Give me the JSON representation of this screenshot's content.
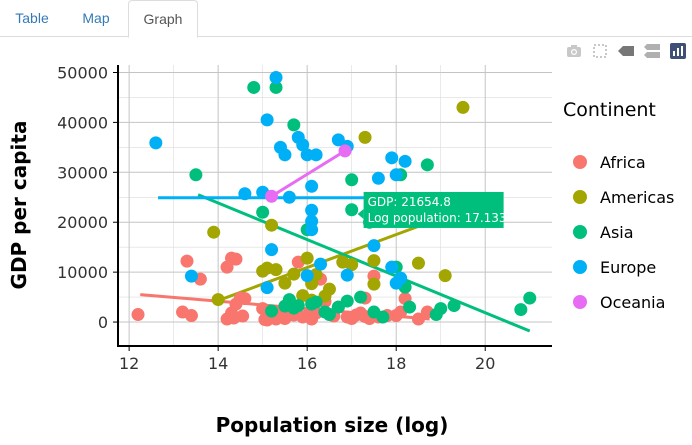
{
  "tabs": [
    {
      "label": "Table",
      "active": false
    },
    {
      "label": "Map",
      "active": false
    },
    {
      "label": "Graph",
      "active": true
    }
  ],
  "modebar": {
    "icons": [
      "camera-icon",
      "box-select-icon",
      "hover-closest-icon",
      "compare-hover-icon",
      "plotly-logo-icon"
    ]
  },
  "chart_data": {
    "type": "scatter",
    "title": "",
    "xlabel": "Population size (log)",
    "ylabel": "GDP per capita",
    "xlim": [
      11.75,
      21.5
    ],
    "ylim": [
      -4800,
      51500
    ],
    "xticks": [
      12,
      14,
      16,
      18,
      20
    ],
    "yticks": [
      0,
      10000,
      20000,
      30000,
      40000,
      50000
    ],
    "grid": true,
    "legend": {
      "title": "Continent",
      "position": "right"
    },
    "series": [
      {
        "name": "Africa",
        "color": "#F8766D",
        "points": [
          [
            12.2,
            1500
          ],
          [
            13.2,
            2000
          ],
          [
            13.4,
            1300
          ],
          [
            13.3,
            12200
          ],
          [
            13.6,
            8600
          ],
          [
            14.2,
            11000
          ],
          [
            14.3,
            12800
          ],
          [
            14.4,
            12600
          ],
          [
            14.3,
            1800
          ],
          [
            14.4,
            3600
          ],
          [
            14.5,
            4800
          ],
          [
            14.6,
            4700
          ],
          [
            14.2,
            600
          ],
          [
            14.35,
            800
          ],
          [
            14.55,
            1200
          ],
          [
            15.0,
            2700
          ],
          [
            15.05,
            500
          ],
          [
            15.1,
            400
          ],
          [
            15.3,
            600
          ],
          [
            15.4,
            2000
          ],
          [
            15.5,
            700
          ],
          [
            15.6,
            2800
          ],
          [
            15.7,
            1400
          ],
          [
            15.8,
            12000
          ],
          [
            15.9,
            1000
          ],
          [
            16.0,
            1300
          ],
          [
            16.2,
            1800
          ],
          [
            16.3,
            8600
          ],
          [
            16.4,
            4100
          ],
          [
            16.5,
            1500
          ],
          [
            16.6,
            1200
          ],
          [
            16.7,
            3000
          ],
          [
            16.9,
            1000
          ],
          [
            17.0,
            700
          ],
          [
            17.1,
            1400
          ],
          [
            17.2,
            1800
          ],
          [
            17.3,
            4800
          ],
          [
            17.4,
            700
          ],
          [
            17.5,
            9200
          ],
          [
            17.6,
            1000
          ],
          [
            17.3,
            1100
          ],
          [
            18.0,
            1300
          ],
          [
            18.1,
            2000
          ],
          [
            18.2,
            4700
          ],
          [
            18.5,
            600
          ],
          [
            18.7,
            2000
          ],
          [
            17.8,
            1300
          ],
          [
            16.1,
            600
          ]
        ],
        "trend": [
          [
            12.25,
            5500
          ],
          [
            18.75,
            600
          ]
        ]
      },
      {
        "name": "Americas",
        "color": "#A3A500",
        "points": [
          [
            13.9,
            18000
          ],
          [
            14.0,
            4500
          ],
          [
            15.0,
            10200
          ],
          [
            15.1,
            10800
          ],
          [
            15.2,
            19400
          ],
          [
            15.5,
            7800
          ],
          [
            15.7,
            9600
          ],
          [
            15.9,
            5300
          ],
          [
            16.0,
            12800
          ],
          [
            16.1,
            7700
          ],
          [
            16.2,
            9500
          ],
          [
            16.4,
            5200
          ],
          [
            16.5,
            6600
          ],
          [
            16.8,
            12000
          ],
          [
            17.0,
            11500
          ],
          [
            17.3,
            37000
          ],
          [
            17.5,
            7600
          ],
          [
            18.5,
            11800
          ],
          [
            19.1,
            9300
          ],
          [
            19.5,
            43000
          ],
          [
            15.3,
            10500
          ],
          [
            16.1,
            4400
          ],
          [
            17.5,
            12300
          ]
        ],
        "trend": [
          [
            14.0,
            4300
          ],
          [
            19.2,
            21500
          ]
        ]
      },
      {
        "name": "Asia",
        "color": "#00BF7D",
        "points": [
          [
            13.5,
            29500
          ],
          [
            14.8,
            47000
          ],
          [
            15.0,
            22000
          ],
          [
            15.2,
            2200
          ],
          [
            15.3,
            47000
          ],
          [
            15.5,
            3200
          ],
          [
            15.6,
            4500
          ],
          [
            15.7,
            39500
          ],
          [
            15.8,
            3300
          ],
          [
            16.0,
            18500
          ],
          [
            16.2,
            4000
          ],
          [
            16.4,
            2000
          ],
          [
            16.7,
            3000
          ],
          [
            16.9,
            4200
          ],
          [
            17.0,
            28500
          ],
          [
            17.2,
            5000
          ],
          [
            17.4,
            20000
          ],
          [
            17.5,
            2000
          ],
          [
            17.7,
            1000
          ],
          [
            18.0,
            11000
          ],
          [
            18.1,
            29500
          ],
          [
            18.2,
            7000
          ],
          [
            18.3,
            3000
          ],
          [
            18.7,
            31500
          ],
          [
            18.9,
            1500
          ],
          [
            19.0,
            2700
          ],
          [
            19.3,
            3300
          ],
          [
            20.8,
            2500
          ],
          [
            21.0,
            4800
          ],
          [
            16.5,
            1500
          ],
          [
            17.0,
            22500
          ],
          [
            15.7,
            2800
          ],
          [
            16.1,
            3600
          ]
        ],
        "trend": [
          [
            13.55,
            25500
          ],
          [
            21.0,
            -1800
          ]
        ]
      },
      {
        "name": "Europe",
        "color": "#00B0F6",
        "points": [
          [
            12.6,
            35900
          ],
          [
            13.4,
            9200
          ],
          [
            14.6,
            25700
          ],
          [
            15.1,
            40500
          ],
          [
            15.2,
            14500
          ],
          [
            15.3,
            49000
          ],
          [
            15.4,
            35000
          ],
          [
            15.5,
            33500
          ],
          [
            15.6,
            25000
          ],
          [
            15.8,
            37000
          ],
          [
            15.9,
            35500
          ],
          [
            16.0,
            33500
          ],
          [
            16.1,
            18500
          ],
          [
            16.1,
            22400
          ],
          [
            16.1,
            27200
          ],
          [
            16.1,
            20200
          ],
          [
            16.2,
            33500
          ],
          [
            16.3,
            11600
          ],
          [
            16.7,
            36500
          ],
          [
            16.9,
            9400
          ],
          [
            17.5,
            15300
          ],
          [
            17.6,
            28800
          ],
          [
            17.9,
            32900
          ],
          [
            17.9,
            11000
          ],
          [
            18.0,
            7800
          ],
          [
            18.0,
            29500
          ],
          [
            18.1,
            8800
          ],
          [
            18.2,
            32200
          ],
          [
            15.0,
            26000
          ],
          [
            15.1,
            6900
          ],
          [
            16.0,
            9300
          ],
          [
            16.9,
            35200
          ]
        ],
        "trend": [
          [
            12.65,
            24900
          ],
          [
            17.9,
            24900
          ]
        ]
      },
      {
        "name": "Oceania",
        "color": "#E76BF3",
        "points": [
          [
            15.2,
            25200
          ],
          [
            16.85,
            34300
          ]
        ],
        "trend": [
          [
            15.2,
            25200
          ],
          [
            16.85,
            34300
          ]
        ]
      }
    ],
    "tooltip": {
      "lines": [
        "GDP: 21654.8",
        "Log population: 17.133"
      ],
      "color": "#00BF7D",
      "x": 17.133,
      "y": 21654.8
    }
  }
}
